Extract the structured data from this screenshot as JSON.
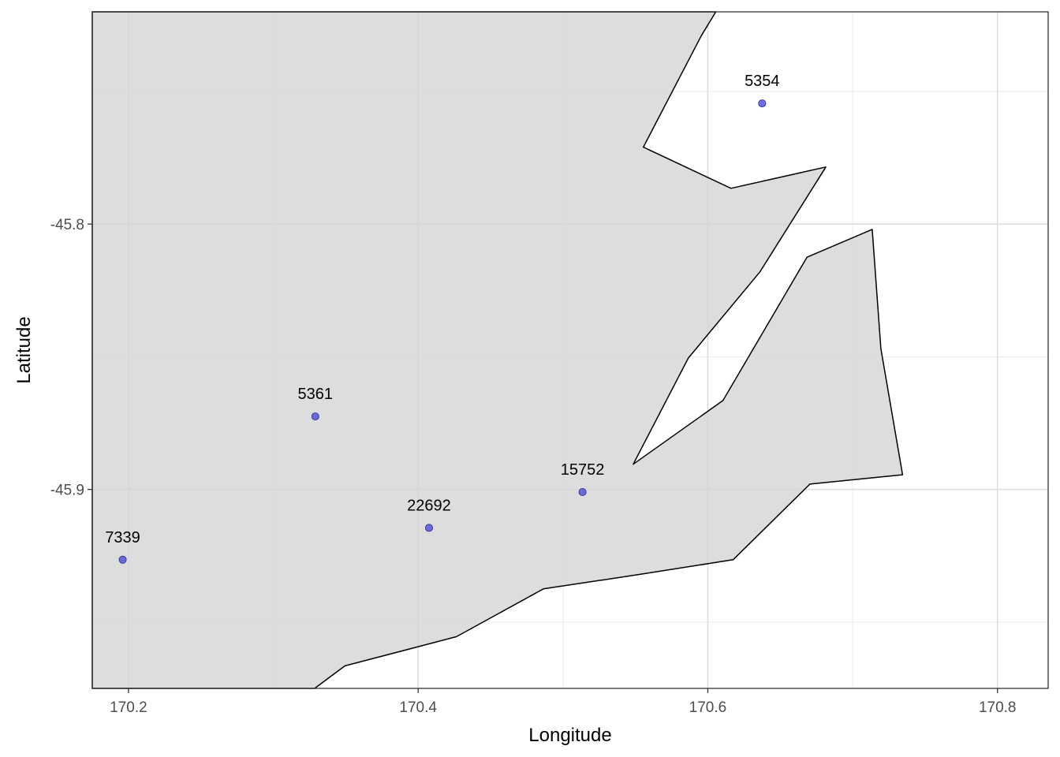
{
  "chart_data": {
    "type": "map",
    "title": "",
    "xlabel": "Longitude",
    "ylabel": "Latitude",
    "xlim": [
      170.175,
      170.835
    ],
    "ylim": [
      -45.975,
      -45.72
    ],
    "x_ticks": [
      170.2,
      170.4,
      170.6,
      170.8
    ],
    "x_tick_labels": [
      "170.2",
      "170.4",
      "170.6",
      "170.8"
    ],
    "y_ticks": [
      -45.8,
      -45.9
    ],
    "y_tick_labels": [
      "-45.8",
      "-45.9"
    ],
    "x_minor": [
      170.3,
      170.5,
      170.7
    ],
    "y_minor": [
      -45.75,
      -45.85,
      -45.95
    ],
    "grid": true,
    "land_fill": "#d6d6d6",
    "land_stroke": "#000000",
    "point_color": "#5555dd",
    "points": [
      {
        "label": "5354",
        "lon": 170.6375,
        "lat": -45.7545
      },
      {
        "label": "5361",
        "lon": 170.329,
        "lat": -45.8725
      },
      {
        "label": "15752",
        "lon": 170.5135,
        "lat": -45.901
      },
      {
        "label": "22692",
        "lon": 170.4075,
        "lat": -45.9145
      },
      {
        "label": "7339",
        "lon": 170.196,
        "lat": -45.9265
      }
    ],
    "land_polygon": [
      [
        170.175,
        -45.72
      ],
      [
        170.6055,
        -45.72
      ],
      [
        170.5955,
        -45.729
      ],
      [
        170.5555,
        -45.771
      ],
      [
        170.616,
        -45.7865
      ],
      [
        170.6815,
        -45.7785
      ],
      [
        170.636,
        -45.818
      ],
      [
        170.5865,
        -45.8505
      ],
      [
        170.5485,
        -45.8905
      ],
      [
        170.6105,
        -45.8665
      ],
      [
        170.6685,
        -45.8125
      ],
      [
        170.7135,
        -45.802
      ],
      [
        170.7195,
        -45.847
      ],
      [
        170.7345,
        -45.8945
      ],
      [
        170.6705,
        -45.898
      ],
      [
        170.6175,
        -45.9265
      ],
      [
        170.5535,
        -45.932
      ],
      [
        170.4865,
        -45.9375
      ],
      [
        170.4265,
        -45.9555
      ],
      [
        170.3495,
        -45.9665
      ],
      [
        170.3285,
        -45.975
      ],
      [
        170.175,
        -45.975
      ]
    ]
  }
}
